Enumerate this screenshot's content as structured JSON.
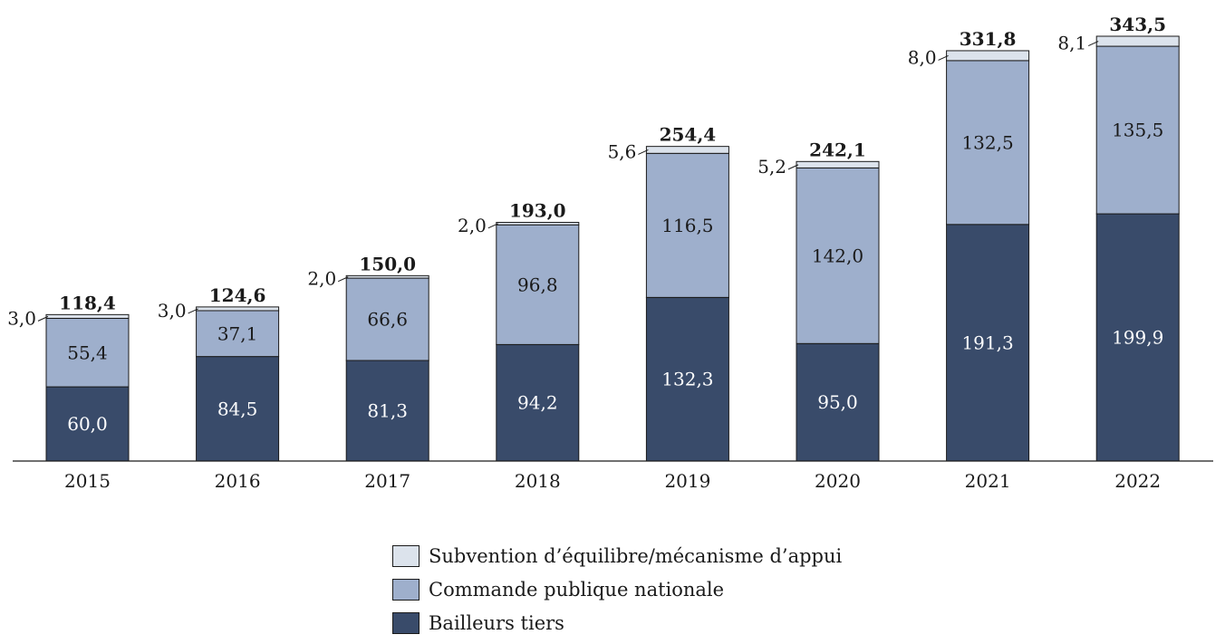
{
  "chart_data": {
    "type": "bar",
    "stacked": true,
    "categories": [
      "2015",
      "2016",
      "2017",
      "2018",
      "2019",
      "2020",
      "2021",
      "2022"
    ],
    "series": [
      {
        "name": "Bailleurs tiers",
        "color": "#394b6a",
        "values": [
          60.0,
          84.5,
          81.3,
          94.2,
          132.3,
          95.0,
          191.3,
          199.9
        ],
        "labels": [
          "60,0",
          "84,5",
          "81,3",
          "94,2",
          "132,3",
          "95,0",
          "191,3",
          "199,9"
        ]
      },
      {
        "name": "Commande publique nationale",
        "color": "#9eafcc",
        "values": [
          55.4,
          37.1,
          66.6,
          96.8,
          116.5,
          142.0,
          132.5,
          135.5
        ],
        "labels": [
          "55,4",
          "37,1",
          "66,6",
          "96,8",
          "116,5",
          "142,0",
          "132,5",
          "135,5"
        ]
      },
      {
        "name": "Subvention d’équilibre/mécanisme d’appui",
        "color": "#dce3ec",
        "values": [
          3.0,
          3.0,
          2.0,
          2.0,
          5.6,
          5.2,
          8.0,
          8.1
        ],
        "labels": [
          "3,0",
          "3,0",
          "2,0",
          "2,0",
          "5,6",
          "5,2",
          "8,0",
          "8,1"
        ]
      }
    ],
    "totals": [
      118.4,
      124.6,
      150.0,
      193.0,
      254.4,
      242.1,
      331.8,
      343.5
    ],
    "total_labels": [
      "118,4",
      "124,6",
      "150,0",
      "193,0",
      "254,4",
      "242,1",
      "331,8",
      "343,5"
    ],
    "ylim": [
      0,
      343.5
    ],
    "grid": false,
    "legend_position": "bottom-center",
    "title": "",
    "xlabel": "",
    "ylabel": ""
  },
  "legend": {
    "items": [
      {
        "label": "Subvention d’équilibre/mécanisme d’appui",
        "color": "#dce3ec"
      },
      {
        "label": "Commande publique nationale",
        "color": "#9eafcc"
      },
      {
        "label": "Bailleurs tiers",
        "color": "#394b6a"
      }
    ]
  }
}
